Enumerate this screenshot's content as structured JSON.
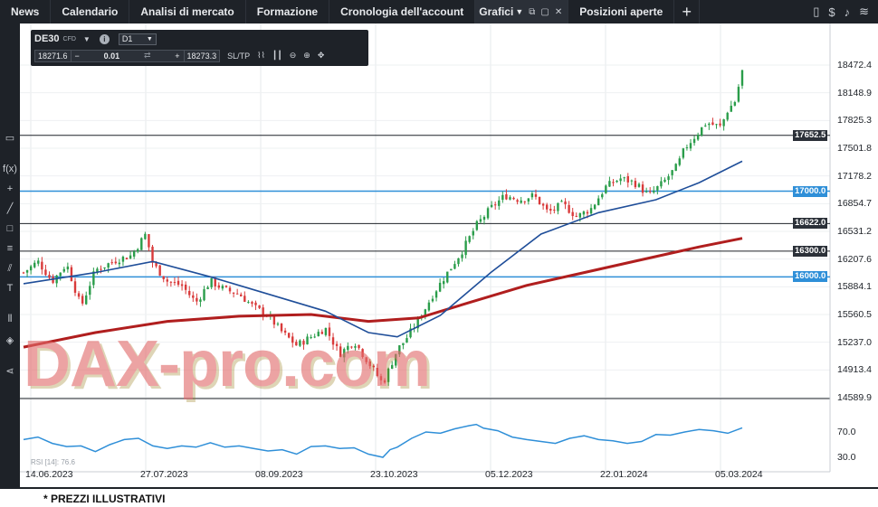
{
  "nav": {
    "items": [
      "News",
      "Calendario",
      "Analisi di mercato",
      "Formazione",
      "Cronologia dell'account"
    ],
    "active_tab": "Grafici",
    "other_tab": "Posizioni aperte",
    "add": "+"
  },
  "instrument": {
    "symbol": "DE30",
    "type": "CFD",
    "timeframe": "D1",
    "sell_price": "18271.6",
    "quantity": "0.01",
    "buy_price": "18273.3",
    "sltp": "SL/TP"
  },
  "chart_data": {
    "type": "candlestick",
    "price_axis": [
      "18472.4",
      "18148.9",
      "17825.3",
      "17501.8",
      "17178.2",
      "16854.7",
      "16531.2",
      "16207.6",
      "15884.1",
      "15560.5",
      "15237.0",
      "14913.4",
      "14589.9"
    ],
    "date_axis": [
      "14.06.2023",
      "27.07.2023",
      "08.09.2023",
      "23.10.2023",
      "05.12.2023",
      "22.01.2024",
      "05.03.2024"
    ],
    "ylim": [
      14589.9,
      18472.4
    ],
    "levels": [
      {
        "label": "17652.5",
        "value": 17652.5,
        "color": "#1e2228"
      },
      {
        "label": "17000.0",
        "value": 17000.0,
        "color": "#2f8fd8"
      },
      {
        "label": "16622.0",
        "value": 16622.0,
        "color": "#1e2228"
      },
      {
        "label": "16300.0",
        "value": 16300.0,
        "color": "#1e2228"
      },
      {
        "label": "16000.0",
        "value": 16000.0,
        "color": "#2f8fd8"
      }
    ],
    "close_path": [
      [
        0,
        16050
      ],
      [
        0.02,
        16180
      ],
      [
        0.04,
        15950
      ],
      [
        0.06,
        16150
      ],
      [
        0.08,
        15650
      ],
      [
        0.1,
        16080
      ],
      [
        0.13,
        16200
      ],
      [
        0.15,
        16250
      ],
      [
        0.17,
        16500
      ],
      [
        0.18,
        16150
      ],
      [
        0.2,
        15950
      ],
      [
        0.22,
        15900
      ],
      [
        0.24,
        15700
      ],
      [
        0.26,
        15950
      ],
      [
        0.28,
        15850
      ],
      [
        0.3,
        15800
      ],
      [
        0.32,
        15650
      ],
      [
        0.34,
        15550
      ],
      [
        0.36,
        15350
      ],
      [
        0.38,
        15200
      ],
      [
        0.4,
        15300
      ],
      [
        0.42,
        15400
      ],
      [
        0.44,
        15100
      ],
      [
        0.46,
        15250
      ],
      [
        0.48,
        15000
      ],
      [
        0.5,
        14750
      ],
      [
        0.51,
        14950
      ],
      [
        0.52,
        15150
      ],
      [
        0.53,
        15250
      ],
      [
        0.55,
        15500
      ],
      [
        0.57,
        15800
      ],
      [
        0.59,
        16050
      ],
      [
        0.61,
        16300
      ],
      [
        0.63,
        16600
      ],
      [
        0.65,
        16800
      ],
      [
        0.67,
        16950
      ],
      [
        0.69,
        16900
      ],
      [
        0.71,
        16950
      ],
      [
        0.73,
        16750
      ],
      [
        0.75,
        16850
      ],
      [
        0.77,
        16700
      ],
      [
        0.79,
        16800
      ],
      [
        0.81,
        17050
      ],
      [
        0.83,
        17150
      ],
      [
        0.85,
        17100
      ],
      [
        0.87,
        16950
      ],
      [
        0.89,
        17100
      ],
      [
        0.91,
        17300
      ],
      [
        0.92,
        17500
      ],
      [
        0.94,
        17700
      ],
      [
        0.95,
        17800
      ],
      [
        0.97,
        17750
      ],
      [
        0.98,
        17950
      ],
      [
        0.99,
        18050
      ],
      [
        1.0,
        18400
      ]
    ],
    "ma_fast": [
      [
        0,
        15920
      ],
      [
        0.1,
        16050
      ],
      [
        0.18,
        16180
      ],
      [
        0.26,
        16000
      ],
      [
        0.34,
        15800
      ],
      [
        0.42,
        15600
      ],
      [
        0.48,
        15350
      ],
      [
        0.52,
        15300
      ],
      [
        0.58,
        15550
      ],
      [
        0.65,
        16050
      ],
      [
        0.72,
        16500
      ],
      [
        0.8,
        16750
      ],
      [
        0.88,
        16900
      ],
      [
        0.94,
        17100
      ],
      [
        1.0,
        17350
      ]
    ],
    "ma_slow": [
      [
        0,
        15180
      ],
      [
        0.1,
        15350
      ],
      [
        0.2,
        15480
      ],
      [
        0.3,
        15540
      ],
      [
        0.4,
        15560
      ],
      [
        0.48,
        15480
      ],
      [
        0.55,
        15520
      ],
      [
        0.62,
        15700
      ],
      [
        0.7,
        15900
      ],
      [
        0.78,
        16050
      ],
      [
        0.86,
        16200
      ],
      [
        0.94,
        16350
      ],
      [
        1.0,
        16450
      ]
    ],
    "rsi": {
      "label": "RSI [14]: 76.6",
      "axis": [
        "70.0",
        "30.0"
      ],
      "ylim": [
        10,
        90
      ],
      "values": [
        [
          0,
          58
        ],
        [
          0.02,
          62
        ],
        [
          0.04,
          52
        ],
        [
          0.06,
          47
        ],
        [
          0.08,
          48
        ],
        [
          0.1,
          39
        ],
        [
          0.12,
          50
        ],
        [
          0.14,
          58
        ],
        [
          0.16,
          60
        ],
        [
          0.18,
          48
        ],
        [
          0.2,
          44
        ],
        [
          0.22,
          48
        ],
        [
          0.24,
          46
        ],
        [
          0.26,
          53
        ],
        [
          0.28,
          46
        ],
        [
          0.3,
          48
        ],
        [
          0.32,
          44
        ],
        [
          0.34,
          40
        ],
        [
          0.36,
          42
        ],
        [
          0.38,
          35
        ],
        [
          0.4,
          47
        ],
        [
          0.42,
          48
        ],
        [
          0.44,
          44
        ],
        [
          0.46,
          45
        ],
        [
          0.48,
          35
        ],
        [
          0.5,
          30
        ],
        [
          0.51,
          42
        ],
        [
          0.52,
          46
        ],
        [
          0.54,
          60
        ],
        [
          0.56,
          70
        ],
        [
          0.58,
          68
        ],
        [
          0.6,
          75
        ],
        [
          0.62,
          80
        ],
        [
          0.63,
          82
        ],
        [
          0.64,
          76
        ],
        [
          0.66,
          72
        ],
        [
          0.68,
          62
        ],
        [
          0.7,
          58
        ],
        [
          0.72,
          55
        ],
        [
          0.74,
          52
        ],
        [
          0.76,
          60
        ],
        [
          0.78,
          64
        ],
        [
          0.8,
          58
        ],
        [
          0.82,
          56
        ],
        [
          0.84,
          52
        ],
        [
          0.86,
          55
        ],
        [
          0.88,
          66
        ],
        [
          0.9,
          65
        ],
        [
          0.92,
          70
        ],
        [
          0.94,
          74
        ],
        [
          0.96,
          72
        ],
        [
          0.98,
          68
        ],
        [
          1.0,
          76.6
        ]
      ]
    }
  },
  "watermark": "DAX-pro.com",
  "footer": "* PREZZI ILLUSTRATIVI",
  "colors": {
    "up": "#2a9d4a",
    "down": "#d93a3a",
    "ma_fast": "#1f4e99",
    "ma_slow": "#b01e1e",
    "rsi": "#2f8fd8"
  }
}
